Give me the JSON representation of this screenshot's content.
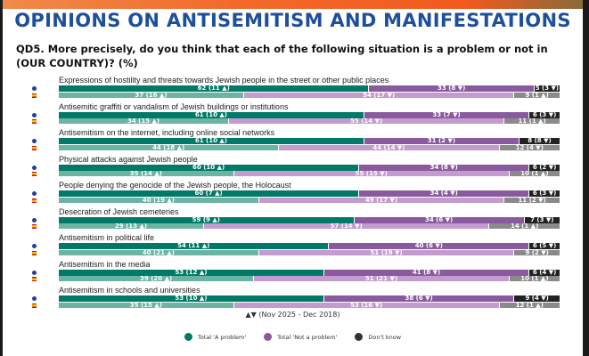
{
  "title": "OPINIONS ON ANTISEMITISM AND MANIFESTATIONS",
  "question": "QD5. More precisely, do you think that each of the following situation is a problem or not in (OUR COUNTRY)? (%)",
  "trend_note": "▲▼ (Nov 2025 - Dec 2018)",
  "chart_data": {
    "type": "bar",
    "stacked": true,
    "orientation": "horizontal",
    "xlim": [
      0,
      100
    ],
    "legend_position": "bottom",
    "legend": [
      "Total 'A problem'",
      "Total 'Not a problem'",
      "Don't know"
    ],
    "colors": {
      "eu": [
        "#007a66",
        "#8a5a9e",
        "#222222"
      ],
      "country": [
        "#6bb4a4",
        "#c39bcf",
        "#8a8a8a"
      ]
    },
    "markers": {
      "eu": "eu-blue-dot-icon",
      "country": "spain-flag-icon"
    },
    "categories": [
      {
        "label": "Expressions of hostility and threats towards Jewish people in the street or other public places",
        "eu": [
          62,
          33,
          5
        ],
        "eu_text": [
          "62 (11 ▲)",
          "33 (8 ▼)",
          "5 (3 ▼)"
        ],
        "country": [
          37,
          54,
          9
        ],
        "country_text": [
          "37 (16 ▲)",
          "54 (17 ▼)",
          "9 (1 ▲)"
        ]
      },
      {
        "label": "Antisemitic graffiti or vandalism of Jewish buildings or institutions",
        "eu": [
          61,
          33,
          6
        ],
        "eu_text": [
          "61 (10 ▲)",
          "33 (7 ▼)",
          "6 (3 ▼)"
        ],
        "country": [
          34,
          55,
          11
        ],
        "country_text": [
          "34 (15 ▲)",
          "55 (14 ▼)",
          "11 (1 ▲)"
        ]
      },
      {
        "label": "Antisemitism on the internet, including online social networks",
        "eu": [
          61,
          31,
          8
        ],
        "eu_text": [
          "61 (10 ▲)",
          "31 (2 ▼)",
          "8 (8 ▼)"
        ],
        "country": [
          44,
          44,
          12
        ],
        "country_text": [
          "44 (18 ▲)",
          "44 (14 ▼)",
          "12 (4 ▼)"
        ]
      },
      {
        "label": "Physical attacks against Jewish people",
        "eu": [
          60,
          34,
          6
        ],
        "eu_text": [
          "60 (10 ▲)",
          "34 (8 ▼)",
          "6 (2 ▼)"
        ],
        "country": [
          35,
          55,
          10
        ],
        "country_text": [
          "35 (14 ▲)",
          "55 (15 ▼)",
          "10 (1 ▲)"
        ]
      },
      {
        "label": "People denying the genocide of the Jewish people, the Holocaust",
        "eu": [
          60,
          34,
          6
        ],
        "eu_text": [
          "60 (7 ▲)",
          "34 (4 ▼)",
          "6 (3 ▼)"
        ],
        "country": [
          40,
          49,
          11
        ],
        "country_text": [
          "40 (19 ▲)",
          "49 (17 ▼)",
          "11 (2 ▼)"
        ]
      },
      {
        "label": "Desecration of Jewish cemeteries",
        "eu": [
          59,
          34,
          7
        ],
        "eu_text": [
          "59 (9 ▲)",
          "34 (6 ▼)",
          "7 (3 ▼)"
        ],
        "country": [
          29,
          57,
          14
        ],
        "country_text": [
          "29 (13 ▲)",
          "57 (14 ▼)",
          "14 (1 ▲)"
        ]
      },
      {
        "label": "Antisemitism in political life",
        "eu": [
          54,
          40,
          6
        ],
        "eu_text": [
          "54 (11 ▲)",
          "40 (6 ▼)",
          "6 (5 ▼)"
        ],
        "country": [
          40,
          51,
          9
        ],
        "country_text": [
          "40 (21 ▲)",
          "51 (19 ▼)",
          "9 (2 ▼)"
        ]
      },
      {
        "label": "Antisemitism in the media",
        "eu": [
          53,
          41,
          6
        ],
        "eu_text": [
          "53 (12 ▲)",
          "41 (8 ▼)",
          "6 (4 ▼)"
        ],
        "country": [
          39,
          51,
          10
        ],
        "country_text": [
          "39 (20 ▲)",
          "51 (21 ▼)",
          "10 (1 ▲)"
        ]
      },
      {
        "label": "Antisemitism in schools and universities",
        "eu": [
          53,
          38,
          9
        ],
        "eu_text": [
          "53 (10 ▲)",
          "38 (6 ▼)",
          "9 (4 ▼)"
        ],
        "country": [
          35,
          53,
          12
        ],
        "country_text": [
          "35 (15 ▲)",
          "53 (16 ▼)",
          "12 (1 ▲)"
        ]
      }
    ]
  }
}
